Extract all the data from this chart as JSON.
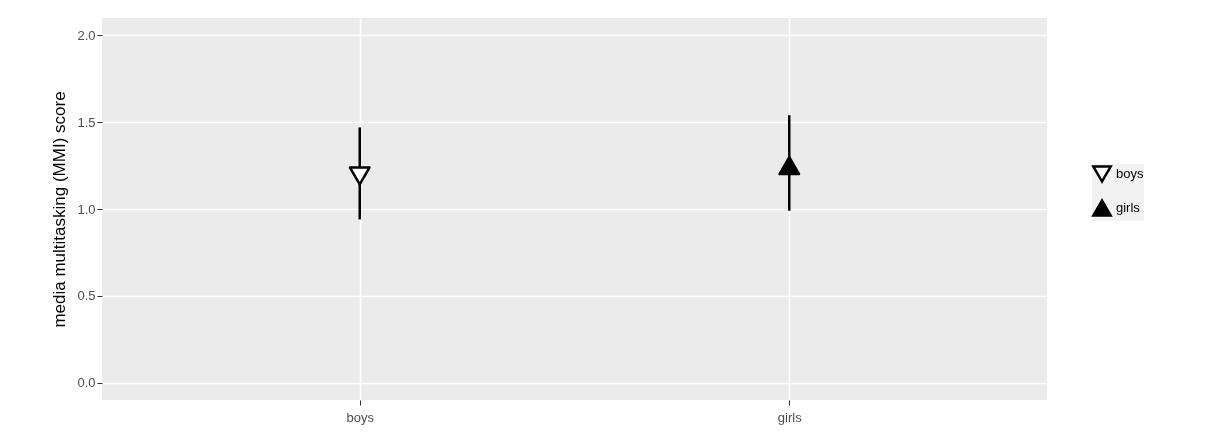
{
  "chart_data": {
    "type": "scatter",
    "ylabel": "media multitasking (MMI) score",
    "categories": [
      "boys",
      "girls"
    ],
    "series": [
      {
        "name": "boys",
        "color": "#000000",
        "marker": "triangle-down-open",
        "values": [
          1.19,
          null
        ],
        "errors": [
          [
            0.94,
            1.47
          ],
          null
        ]
      },
      {
        "name": "girls",
        "color": "#000000",
        "marker": "triangle",
        "values": [
          null,
          1.25
        ],
        "errors": [
          null,
          [
            0.99,
            1.54
          ]
        ]
      }
    ],
    "ylim": [
      -0.1,
      2.1
    ],
    "yticks": [
      {
        "value": 0,
        "label": "0.0"
      },
      0.5,
      {
        "value": 1,
        "label": "1.0"
      },
      1.5,
      {
        "value": 2,
        "label": "2.0"
      }
    ],
    "grid": true,
    "legend": "right"
  }
}
